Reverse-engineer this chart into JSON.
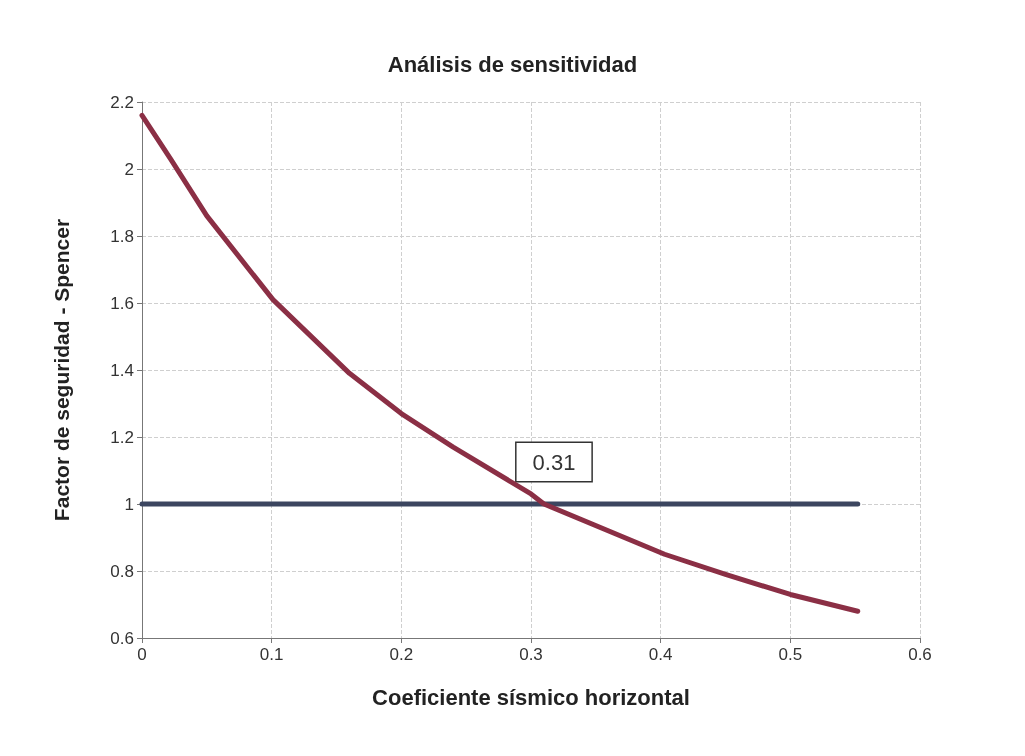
{
  "chart_data": {
    "type": "line",
    "title": "Análisis de sensitividad",
    "xlabel": "Coeficiente sísmico horizontal",
    "ylabel": "Factor de seguridad - Spencer",
    "series": [
      {
        "color": "#8b2f45",
        "x": [
          0,
          0.022,
          0.05,
          0.101,
          0.16,
          0.2,
          0.24,
          0.3,
          0.31,
          0.403,
          0.45,
          0.5,
          0.552
        ],
        "values": [
          2.16,
          2.03,
          1.86,
          1.61,
          1.39,
          1.27,
          1.17,
          1.03,
          1.0,
          0.85,
          0.79,
          0.73,
          0.68
        ]
      },
      {
        "color": "#3c4660",
        "x": [
          0,
          0.552
        ],
        "values": [
          1,
          1
        ]
      }
    ],
    "annotations": [
      {
        "text": "0.31",
        "x": 0.31,
        "y": 1
      }
    ],
    "xlim": [
      0,
      0.6
    ],
    "xticks": [
      0,
      0.1,
      0.2,
      0.3,
      0.4,
      0.5,
      0.6
    ],
    "ylim": [
      0.6,
      2.2
    ],
    "yticks": [
      0.6,
      0.8,
      1,
      1.2,
      1.4,
      1.6,
      1.8,
      2,
      2.2
    ],
    "grid": true,
    "marker": "none",
    "line_style": "solid"
  }
}
